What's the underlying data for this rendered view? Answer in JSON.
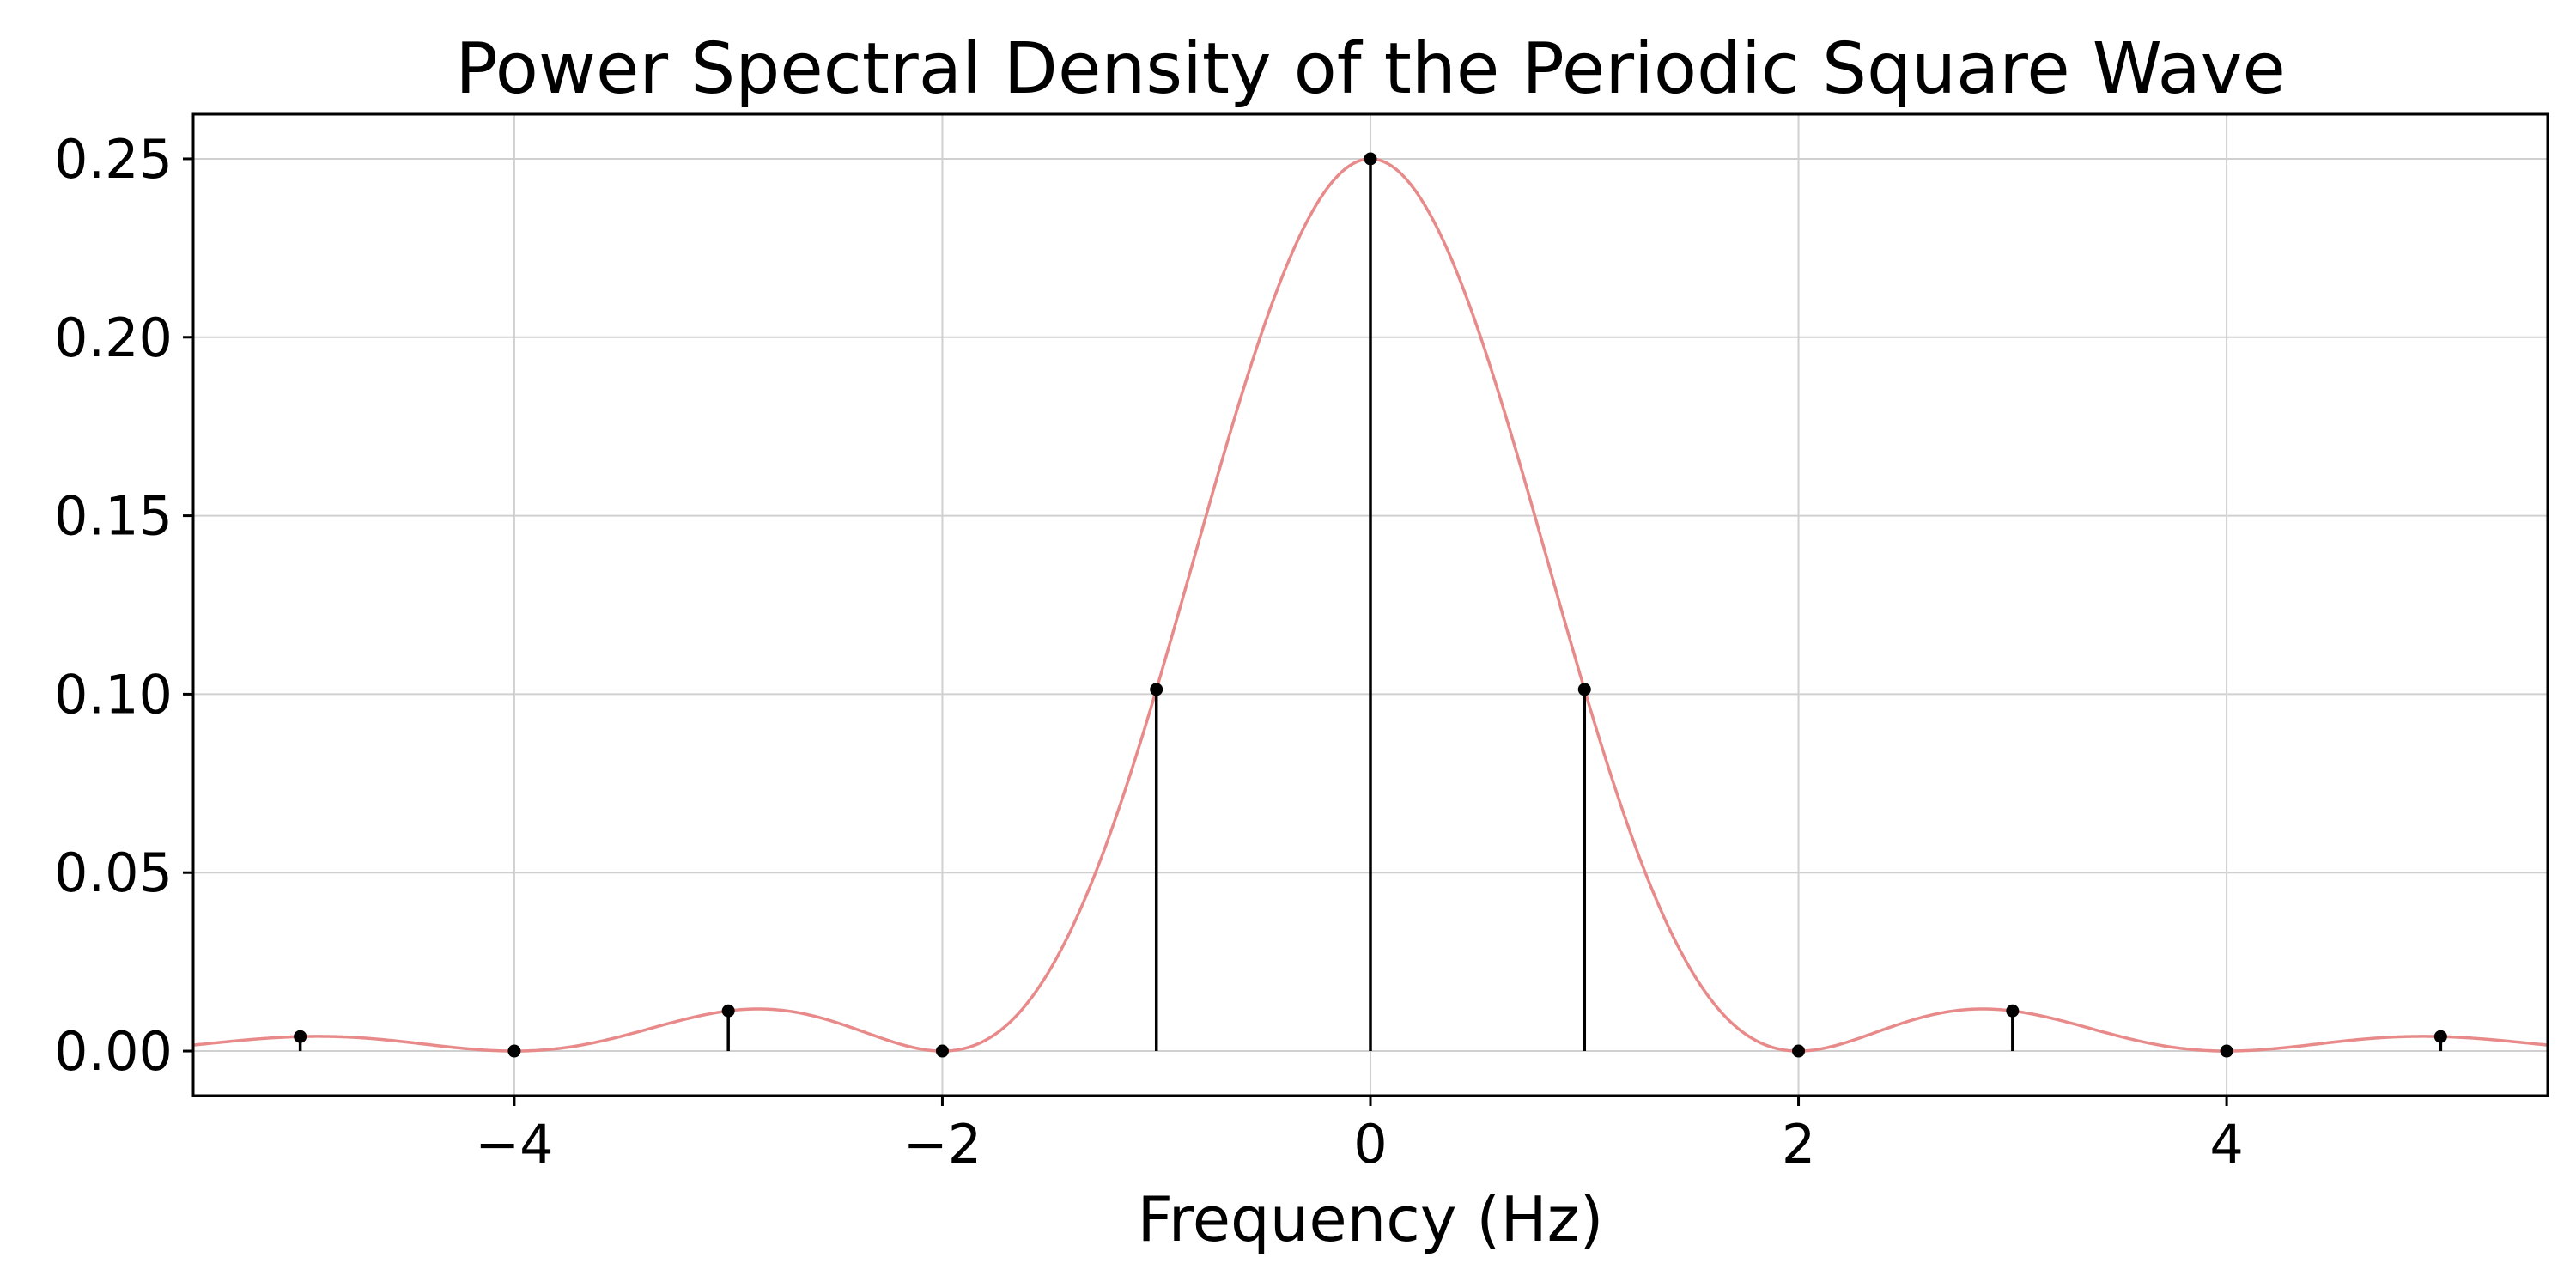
{
  "chart_data": {
    "type": "stem",
    "title": "Power Spectral Density of the Periodic Square Wave",
    "xlabel": "Frequency (Hz)",
    "ylabel": "",
    "xlim": [
      -5.5,
      5.5
    ],
    "ylim": [
      -0.0125,
      0.2625
    ],
    "xticks": [
      -4,
      -2,
      0,
      2,
      4
    ],
    "xtick_labels": [
      "−4",
      "−2",
      "0",
      "2",
      "4"
    ],
    "yticks": [
      0.0,
      0.05,
      0.1,
      0.15,
      0.2,
      0.25
    ],
    "ytick_labels": [
      "0.00",
      "0.05",
      "0.10",
      "0.15",
      "0.20",
      "0.25"
    ],
    "grid": true,
    "series": [
      {
        "kind": "stem",
        "x": [
          -5,
          -4,
          -3,
          -2,
          -1,
          0,
          1,
          2,
          3,
          4,
          5
        ],
        "y": [
          0.00405,
          0.0,
          0.01126,
          0.0,
          0.10132,
          0.25,
          0.10132,
          0.0,
          0.01126,
          0.0,
          0.00405
        ],
        "color": "#000000"
      },
      {
        "kind": "envelope",
        "function": "0.25 * sinc^2(f/2)",
        "color": "#e88a8a"
      }
    ]
  }
}
